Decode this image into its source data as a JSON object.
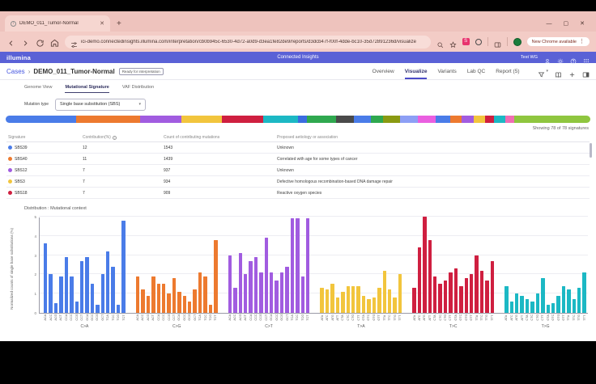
{
  "browser": {
    "tab_title": "DEMO_011_Tumor-Normal",
    "url": "ici-demo.connectedinsights.illumina.com/interpretation/cb0b945c-6530-4d72-a0d9-d3ea1fe82de9/reports/d3dcb47f-f00f-4dde-bc10-35d72891236d/visualize",
    "update_button": "New Chrome available"
  },
  "header": {
    "brand": "illumina",
    "app_title": "Connected Insights",
    "user_label": "Test WG"
  },
  "breadcrumb": {
    "section": "Cases",
    "separator": "›",
    "case_name": "DEMO_011_Tumor-Normal",
    "status": "Ready for interpretation"
  },
  "nav": {
    "tabs": [
      {
        "label": "Overview"
      },
      {
        "label": "Visualize"
      },
      {
        "label": "Variants"
      },
      {
        "label": "Lab QC"
      },
      {
        "label": "Report (5)"
      }
    ]
  },
  "subnav": {
    "tabs": [
      {
        "label": "Genome View"
      },
      {
        "label": "Mutational Signature"
      },
      {
        "label": "VAF Distribution"
      }
    ]
  },
  "controls": {
    "mutation_type_label": "Mutation type",
    "mutation_type_value": "Single base substitution (SBS)"
  },
  "contribution_bar": {
    "segments": [
      {
        "signature": "SBS39",
        "color": "#4a7ce8",
        "pct": 12
      },
      {
        "signature": "SBS40",
        "color": "#ed7a2f",
        "pct": 11
      },
      {
        "signature": "SBS12",
        "color": "#a15ce0",
        "pct": 7
      },
      {
        "signature": "SBS3",
        "color": "#f2c53d",
        "pct": 7
      },
      {
        "signature": "SBS18",
        "color": "#cf1f40",
        "pct": 7
      },
      {
        "color": "#1cb8c4",
        "pct": 6
      },
      {
        "color": "#3b6ce0",
        "pct": 1.5
      },
      {
        "color": "#2fa84f",
        "pct": 5
      },
      {
        "color": "#4a4a4a",
        "pct": 3
      },
      {
        "color": "#4a7ce8",
        "pct": 3
      },
      {
        "color": "#2fa84f",
        "pct": 2
      },
      {
        "color": "#8a9a12",
        "pct": 3
      },
      {
        "color": "#8d9ff5",
        "pct": 3
      },
      {
        "color": "#ea5fe0",
        "pct": 3
      },
      {
        "color": "#4a7ce8",
        "pct": 2.5
      },
      {
        "color": "#ed7a2f",
        "pct": 2
      },
      {
        "color": "#a15ce0",
        "pct": 2
      },
      {
        "color": "#f2c53d",
        "pct": 2
      },
      {
        "color": "#cf1f40",
        "pct": 1.5
      },
      {
        "color": "#1cb8c4",
        "pct": 2
      },
      {
        "color": "#f06eb4",
        "pct": 1.5
      },
      {
        "color": "#8fc63f",
        "pct": 13
      }
    ]
  },
  "summary": {
    "showing": "Showing 78 of 78 signatures"
  },
  "signature_table": {
    "columns": [
      "Signature",
      "Contribution(%)",
      "Count of contributing mutations",
      "Proposed aetiology or association"
    ],
    "rows": [
      {
        "signature": "SBS39",
        "color": "#4a7ce8",
        "contribution": "12",
        "count": "1543",
        "aetiology": "Unknown"
      },
      {
        "signature": "SBS40",
        "color": "#ed7a2f",
        "contribution": "11",
        "count": "1439",
        "aetiology": "Correlated with age for some types of cancer"
      },
      {
        "signature": "SBS12",
        "color": "#a15ce0",
        "contribution": "7",
        "count": "937",
        "aetiology": "Unknown"
      },
      {
        "signature": "SBS3",
        "color": "#f2c53d",
        "contribution": "7",
        "count": "934",
        "aetiology": "Defective homologous recombination-based DNA damage repair"
      },
      {
        "signature": "SBS18",
        "color": "#cf1f40",
        "contribution": "7",
        "count": "909",
        "aetiology": "Reactive oxygen species"
      }
    ]
  },
  "chart_data": {
    "type": "bar",
    "title": "Distribution : Mutational context",
    "ylabel": "Normalized counts of single base substitutions (%)",
    "ylim": [
      0,
      5
    ],
    "yticks": [
      0,
      1,
      2,
      3,
      4,
      5
    ],
    "grid": true,
    "groups": [
      {
        "label": "C>A",
        "color": "#4a7ce8",
        "contexts": [
          "ACA",
          "ACC",
          "ACG",
          "ACT",
          "CCA",
          "CCC",
          "CCG",
          "CCT",
          "GCA",
          "GCC",
          "GCG",
          "GCT",
          "TCA",
          "TCC",
          "TCG",
          "TCT"
        ],
        "values": [
          3.6,
          2.0,
          0.5,
          1.9,
          2.9,
          1.9,
          0.6,
          2.7,
          2.9,
          1.5,
          0.4,
          2.0,
          3.2,
          2.4,
          0.4,
          4.8
        ]
      },
      {
        "label": "C>G",
        "color": "#ed7a2f",
        "contexts": [
          "ACA",
          "ACC",
          "ACG",
          "ACT",
          "CCA",
          "CCC",
          "CCG",
          "CCT",
          "GCA",
          "GCC",
          "GCG",
          "GCT",
          "TCA",
          "TCC",
          "TCG",
          "TCT"
        ],
        "values": [
          1.9,
          1.2,
          0.9,
          1.9,
          1.5,
          1.5,
          1.0,
          1.8,
          1.1,
          0.9,
          0.6,
          1.2,
          2.1,
          1.9,
          0.4,
          3.8
        ]
      },
      {
        "label": "C>T",
        "color": "#a15ce0",
        "contexts": [
          "ACA",
          "ACC",
          "ACG",
          "ACT",
          "CCA",
          "CCC",
          "CCG",
          "CCT",
          "GCA",
          "GCC",
          "GCG",
          "GCT",
          "TCA",
          "TCC",
          "TCG",
          "TCT"
        ],
        "values": [
          3.0,
          1.3,
          3.1,
          2.0,
          2.7,
          2.9,
          2.1,
          3.9,
          2.1,
          1.7,
          2.1,
          2.4,
          4.9,
          4.9,
          1.9,
          4.9
        ]
      },
      {
        "label": "T>A",
        "color": "#f2c53d",
        "contexts": [
          "ATA",
          "ATC",
          "ATG",
          "ATT",
          "CTA",
          "CTC",
          "CTG",
          "CTT",
          "GTA",
          "GTC",
          "GTG",
          "GTT",
          "TTA",
          "TTC",
          "TTG",
          "TTT"
        ],
        "values": [
          1.3,
          1.2,
          1.5,
          0.8,
          1.1,
          1.4,
          1.4,
          1.4,
          0.9,
          0.7,
          0.8,
          1.3,
          2.2,
          1.2,
          0.8,
          2.0
        ]
      },
      {
        "label": "T>C",
        "color": "#cf1f40",
        "contexts": [
          "ATA",
          "ATC",
          "ATG",
          "ATT",
          "CTA",
          "CTC",
          "CTG",
          "CTT",
          "GTA",
          "GTC",
          "GTG",
          "GTT",
          "TTA",
          "TTC",
          "TTG",
          "TTT"
        ],
        "values": [
          1.3,
          3.4,
          5.0,
          3.8,
          1.9,
          1.5,
          1.7,
          2.1,
          2.3,
          1.4,
          1.8,
          2.0,
          3.0,
          2.2,
          1.7,
          2.7
        ]
      },
      {
        "label": "T>G",
        "color": "#1cb8c4",
        "contexts": [
          "ATA",
          "ATC",
          "ATG",
          "ATT",
          "CTA",
          "CTC",
          "CTG",
          "CTT",
          "GTA",
          "GTC",
          "GTG",
          "GTT",
          "TTA",
          "TTC",
          "TTG",
          "TTT"
        ],
        "values": [
          1.4,
          0.6,
          1.0,
          0.9,
          0.7,
          0.6,
          1.0,
          1.8,
          0.4,
          0.5,
          0.9,
          1.4,
          1.2,
          0.7,
          1.3,
          2.1
        ]
      }
    ]
  }
}
